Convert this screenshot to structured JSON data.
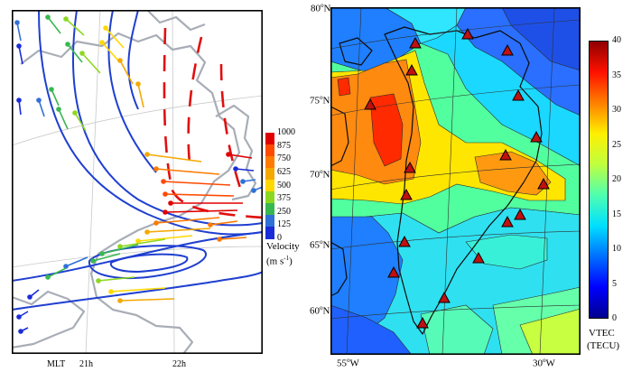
{
  "left_panel": {
    "velocity_scale": {
      "ticks": [
        "1000",
        "875",
        "750",
        "625",
        "500",
        "375",
        "250",
        "125",
        "0"
      ],
      "colors": [
        "#e00000",
        "#ff4a00",
        "#ff7a00",
        "#f5a800",
        "#ffd800",
        "#8cd820",
        "#38b850",
        "#3070d8",
        "#1a2cd8"
      ],
      "title": "Velocity",
      "unit": "(m s",
      "unit_sup": "-1",
      "unit_close": ")"
    },
    "mlt_label": "MLT",
    "mlt_ticks": [
      "21h",
      "22h"
    ]
  },
  "right_panel": {
    "lat_labels": [
      {
        "deg": "80",
        "dir": "N"
      },
      {
        "deg": "75",
        "dir": "N"
      },
      {
        "deg": "70",
        "dir": "N"
      },
      {
        "deg": "65",
        "dir": "N"
      },
      {
        "deg": "60",
        "dir": "N"
      }
    ],
    "lon_labels": [
      {
        "deg": "55",
        "dir": "W"
      },
      {
        "deg": "30",
        "dir": "W"
      }
    ],
    "vtec_scale": {
      "ticks": [
        "40",
        "35",
        "30",
        "25",
        "20",
        "15",
        "10",
        "5",
        "0"
      ],
      "title": "VTEC",
      "unit": "(TECU)",
      "colors": [
        "#00008f",
        "#0000ff",
        "#006fff",
        "#00dfff",
        "#4fffaf",
        "#bfff3f",
        "#ffef00",
        "#ff7f00",
        "#ff1000",
        "#8f0000"
      ]
    }
  }
}
